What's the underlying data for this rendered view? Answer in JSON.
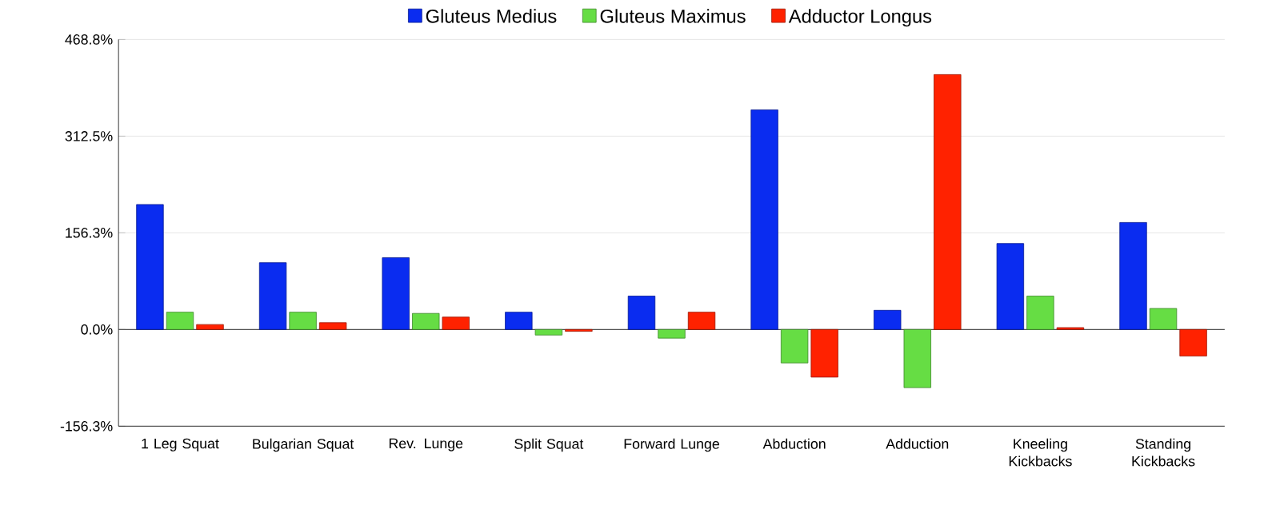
{
  "chart_data": {
    "type": "bar",
    "categories": [
      "1 Leg Squat",
      "Bulgarian Squat",
      "Rev. Lunge",
      "Split Squat",
      "Forward Lunge",
      "Abduction",
      "Adduction",
      "Kneeling Kickbacks",
      "Standing Kickbacks"
    ],
    "series": [
      {
        "name": "Gluteus Medius",
        "color": "#0a2cf0",
        "values": [
          202,
          108,
          116,
          28,
          54,
          355,
          31,
          139,
          173
        ]
      },
      {
        "name": "Gluteus Maximus",
        "color": "#66dd44",
        "values": [
          28,
          28,
          26,
          -9,
          -14,
          -54,
          -94,
          54,
          34
        ]
      },
      {
        "name": "Adductor Longus",
        "color": "#ff2200",
        "values": [
          8,
          11,
          20,
          -3,
          28,
          -77,
          412,
          3,
          -43
        ]
      }
    ],
    "ylim": [
      -156.3,
      468.8
    ],
    "yticks": [
      {
        "value": -156.3,
        "label": "-156.3%"
      },
      {
        "value": 0,
        "label": "0.0%"
      },
      {
        "value": 156.3,
        "label": "156.3%"
      },
      {
        "value": 312.5,
        "label": "312.5%"
      },
      {
        "value": 468.8,
        "label": "468.8%"
      }
    ],
    "legend": "top",
    "grid": "y"
  }
}
